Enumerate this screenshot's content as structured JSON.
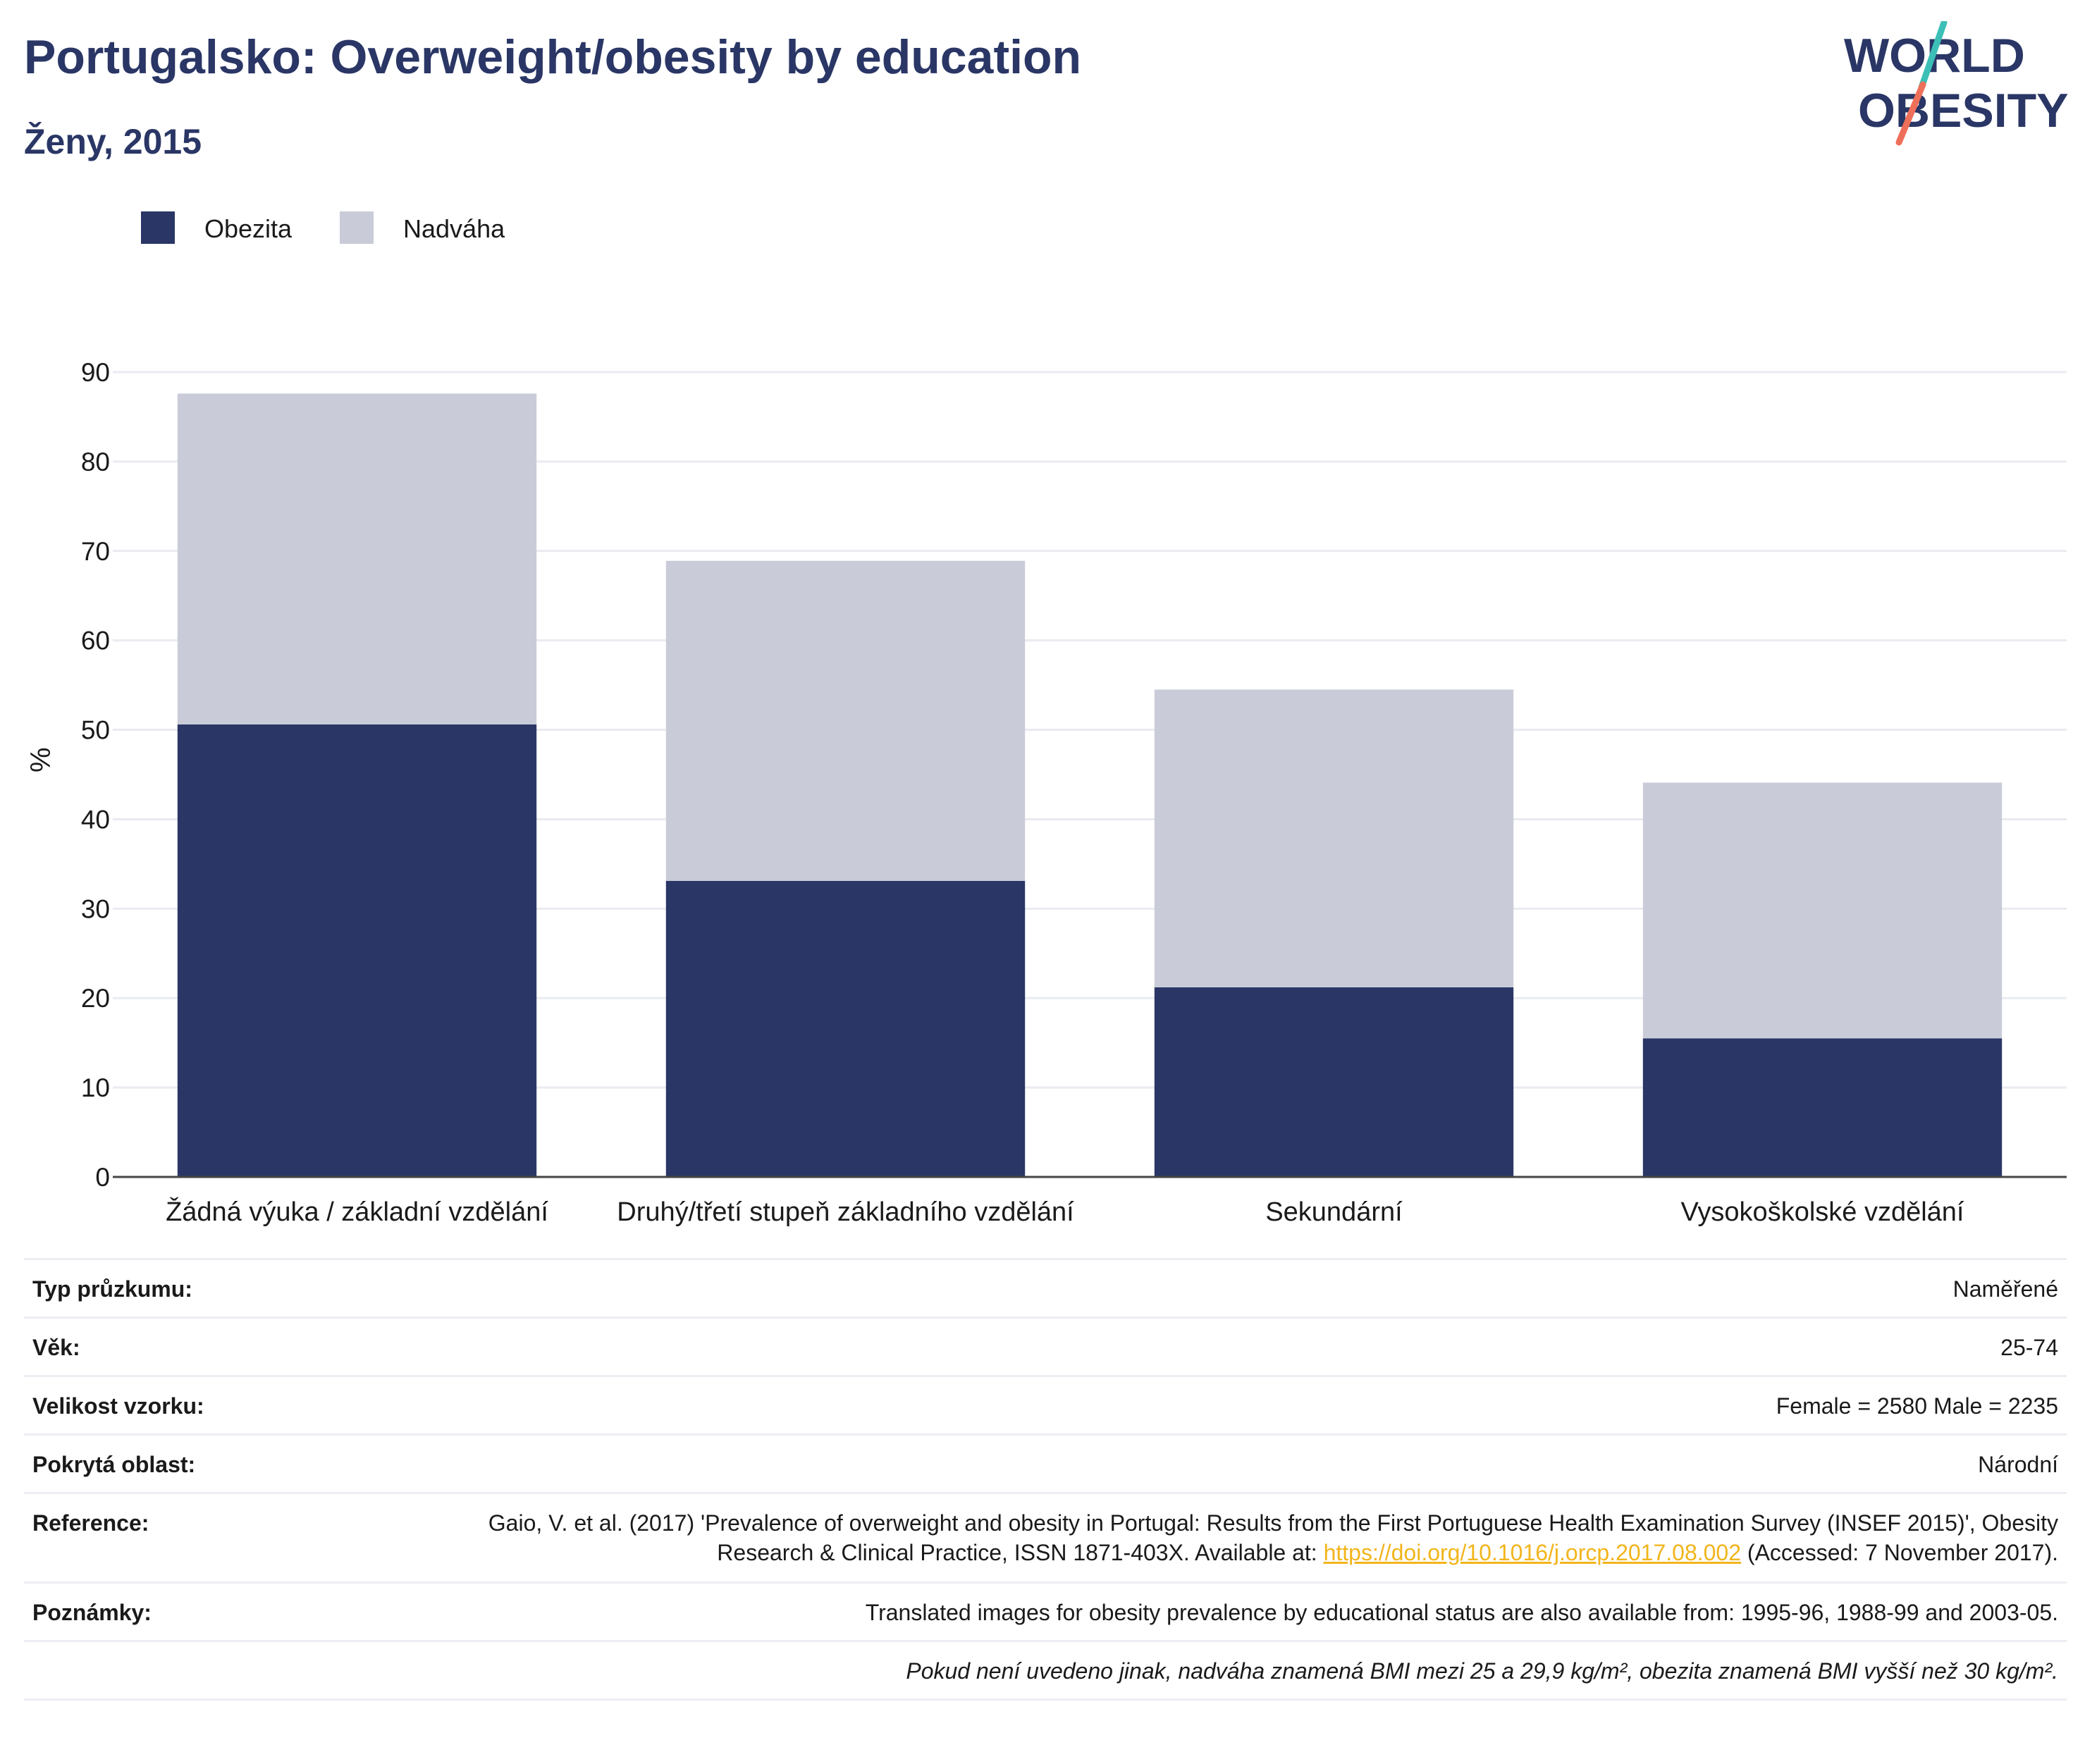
{
  "header": {
    "title": "Portugalsko: Overweight/obesity by education",
    "subtitle": "Ženy, 2015",
    "logo_line1": "WORLD",
    "logo_line2": "OBESITY"
  },
  "legend": [
    {
      "label": "Obezita",
      "color": "#2a3665"
    },
    {
      "label": "Nadváha",
      "color": "#c9ccd8"
    }
  ],
  "chart_data": {
    "type": "bar",
    "stacked": true,
    "categories": [
      "Žádná výuka / základní vzdělání",
      "Druhý/třetí stupeň základního vzdělání",
      "Sekundární",
      "Vysokoškolské vzdělání"
    ],
    "series": [
      {
        "name": "Obezita",
        "color": "#2a3665",
        "values": [
          50.6,
          33.1,
          21.2,
          15.5
        ]
      },
      {
        "name": "Nadváha",
        "color": "#c9ccd8",
        "values": [
          37.0,
          35.8,
          33.3,
          28.6
        ]
      }
    ],
    "ylabel": "%",
    "ylim": [
      0,
      90
    ],
    "yticks": [
      0,
      10,
      20,
      30,
      40,
      50,
      60,
      70,
      80,
      90
    ],
    "grid": true,
    "legend_position": "top-left"
  },
  "info": {
    "survey_type": {
      "key": "Typ průzkumu:",
      "value": "Naměřené"
    },
    "age": {
      "key": "Věk:",
      "value": "25-74"
    },
    "sample_size": {
      "key": "Velikost vzorku:",
      "value": "Female = 2580 Male = 2235"
    },
    "area": {
      "key": "Pokrytá oblast:",
      "value": "Národní"
    },
    "reference": {
      "key": "Reference:",
      "text_before": "Gaio, V. et al. (2017) 'Prevalence of overweight and obesity in Portugal: Results from the First Portuguese Health Examination Survey (INSEF 2015)', Obesity Research & Clinical Practice, ISSN 1871-403X. Available at: ",
      "link": "https://doi.org/10.1016/j.orcp.2017.08.002",
      "text_after": " (Accessed: 7 November 2017)."
    },
    "notes": {
      "key": "Poznámky:",
      "value": "Translated images for obesity prevalence by educational status are also available from: 1995-96, 1988-99 and 2003-05."
    },
    "footnote": "Pokud není uvedeno jinak, nadváha znamená BMI mezi 25 a 29,9 kg/m², obezita znamená BMI vyšší než 30 kg/m²."
  }
}
